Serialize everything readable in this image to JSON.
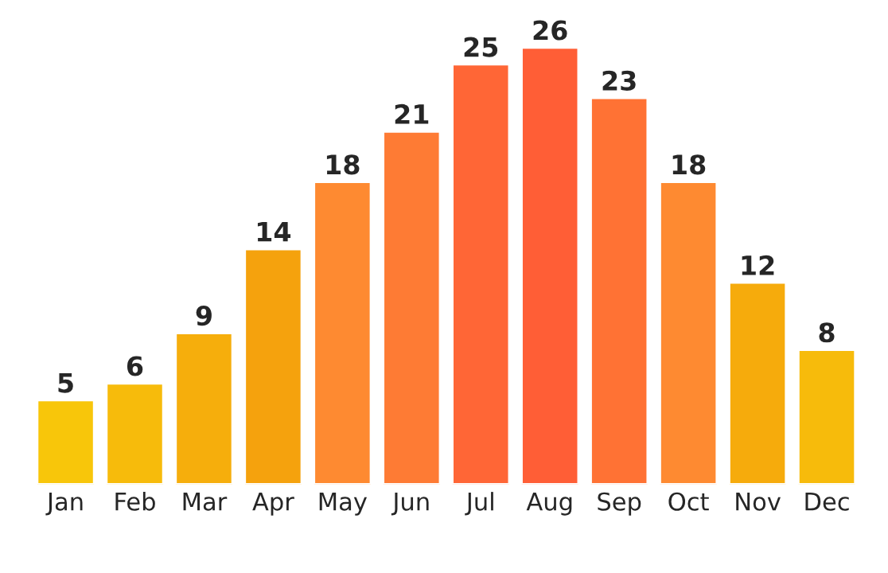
{
  "chart_data": {
    "type": "bar",
    "categories": [
      "Jan",
      "Feb",
      "Mar",
      "Apr",
      "May",
      "Jun",
      "Jul",
      "Aug",
      "Sep",
      "Oct",
      "Nov",
      "Dec"
    ],
    "values": [
      5,
      6,
      9,
      14,
      18,
      21,
      25,
      26,
      23,
      18,
      12,
      8
    ],
    "colors": [
      "#f8c60a",
      "#f7bb0b",
      "#f6ae0c",
      "#f5a20d",
      "#fe8a31",
      "#fe7b34",
      "#ff6636",
      "#ff5e36",
      "#ff7234",
      "#fe8a31",
      "#f6ab0c",
      "#f7bb0b"
    ],
    "data_labels": true
  }
}
